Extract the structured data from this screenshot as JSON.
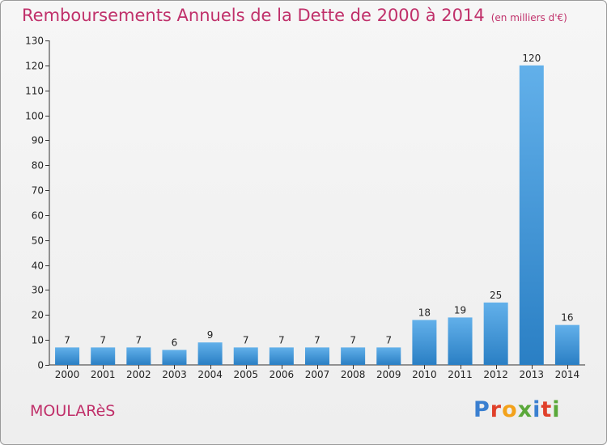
{
  "header": {
    "title": "Remboursements Annuels de la Dette de 2000 à 2014",
    "unit": "(en milliers d'€)"
  },
  "footer": {
    "commune": "MOULARèS",
    "logo": "Proxiti",
    "logo_colors": [
      "#3a7fd0",
      "#e0402a",
      "#f3a21b",
      "#5aa83a",
      "#3a7fd0",
      "#e0402a",
      "#5aa83a"
    ]
  },
  "chart_data": {
    "type": "bar",
    "categories": [
      "2000",
      "2001",
      "2002",
      "2003",
      "2004",
      "2005",
      "2006",
      "2007",
      "2008",
      "2009",
      "2010",
      "2011",
      "2012",
      "2013",
      "2014"
    ],
    "values": [
      7,
      7,
      7,
      6,
      9,
      7,
      7,
      7,
      7,
      7,
      18,
      19,
      25,
      120,
      16
    ],
    "data_labels": [
      "7",
      "7",
      "7",
      "6",
      "9",
      "7",
      "7",
      "7",
      "7",
      "7",
      "18",
      "19",
      "25",
      "120",
      "16"
    ],
    "yticks": [
      0,
      10,
      20,
      30,
      40,
      50,
      60,
      70,
      80,
      90,
      100,
      110,
      120,
      130
    ],
    "ylim": [
      0,
      130
    ],
    "grid": false,
    "bar_color_top": "#62b0ea",
    "bar_color_bottom": "#2a7fc4"
  }
}
